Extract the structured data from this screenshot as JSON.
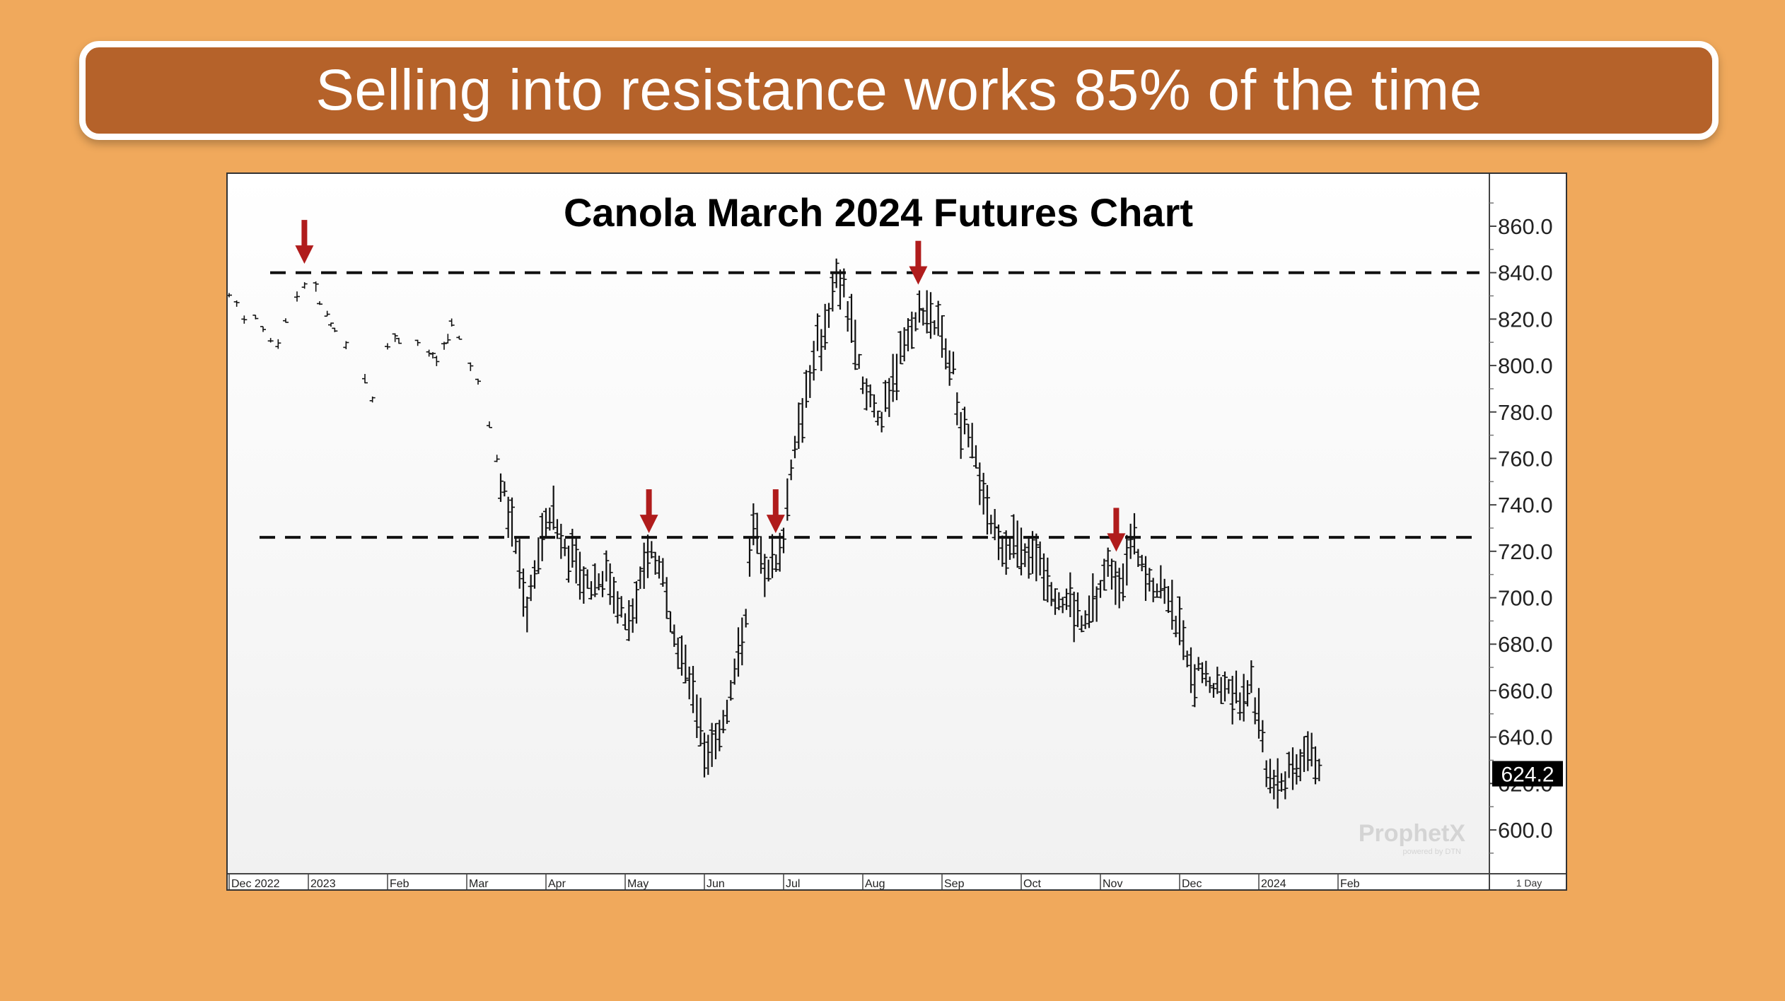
{
  "banner": {
    "title": "Selling into resistance works 85% of the time"
  },
  "chart_data": {
    "type": "bar",
    "subtype": "ohlc",
    "title": "Canola March 2024 Futures Chart",
    "ylim": [
      590,
      870
    ],
    "y_ticks": [
      "860.0",
      "840.0",
      "820.0",
      "800.0",
      "780.0",
      "760.0",
      "740.0",
      "720.0",
      "700.0",
      "680.0",
      "660.0",
      "640.0",
      "620.0",
      "600.0"
    ],
    "y_tick_values": [
      860,
      840,
      820,
      800,
      780,
      760,
      740,
      720,
      700,
      680,
      660,
      640,
      620,
      600
    ],
    "x_ticks": [
      "Dec 2022",
      "2023",
      "Feb",
      "Mar",
      "Apr",
      "May",
      "Jun",
      "Jul",
      "Aug",
      "Sep",
      "Oct",
      "Nov",
      "Dec",
      "2024",
      "Feb"
    ],
    "x_tick_month_index": [
      0,
      1,
      2,
      3,
      4,
      5,
      6,
      7,
      8,
      9,
      10,
      11,
      12,
      13,
      14
    ],
    "interval_label": "1 Day",
    "last_price": "624.2",
    "resistance_levels": [
      840,
      726
    ],
    "arrows": [
      {
        "month_index": 0.95,
        "price": 842
      },
      {
        "month_index": 5.3,
        "price": 726
      },
      {
        "month_index": 6.9,
        "price": 726
      },
      {
        "month_index": 8.7,
        "price": 833
      },
      {
        "month_index": 11.2,
        "price": 718
      }
    ],
    "price_path": [
      {
        "m": 0.0,
        "p": 830
      },
      {
        "m": 0.3,
        "p": 818
      },
      {
        "m": 0.6,
        "p": 810
      },
      {
        "m": 0.9,
        "p": 832
      },
      {
        "m": 1.0,
        "p": 838
      },
      {
        "m": 1.2,
        "p": 822
      },
      {
        "m": 1.4,
        "p": 812
      },
      {
        "m": 1.6,
        "p": 798
      },
      {
        "m": 1.8,
        "p": 788
      },
      {
        "m": 2.0,
        "p": 812
      },
      {
        "m": 2.3,
        "p": 814
      },
      {
        "m": 2.6,
        "p": 800
      },
      {
        "m": 2.85,
        "p": 818
      },
      {
        "m": 3.0,
        "p": 805
      },
      {
        "m": 3.2,
        "p": 792
      },
      {
        "m": 3.35,
        "p": 765
      },
      {
        "m": 3.5,
        "p": 740
      },
      {
        "m": 3.65,
        "p": 720
      },
      {
        "m": 3.75,
        "p": 695
      },
      {
        "m": 3.9,
        "p": 718
      },
      {
        "m": 4.05,
        "p": 738
      },
      {
        "m": 4.2,
        "p": 725
      },
      {
        "m": 4.35,
        "p": 718
      },
      {
        "m": 4.55,
        "p": 705
      },
      {
        "m": 4.75,
        "p": 712
      },
      {
        "m": 4.9,
        "p": 700
      },
      {
        "m": 5.0,
        "p": 688
      },
      {
        "m": 5.15,
        "p": 700
      },
      {
        "m": 5.3,
        "p": 722
      },
      {
        "m": 5.45,
        "p": 712
      },
      {
        "m": 5.6,
        "p": 690
      },
      {
        "m": 5.75,
        "p": 668
      },
      {
        "m": 5.85,
        "p": 660
      },
      {
        "m": 5.95,
        "p": 645
      },
      {
        "m": 6.0,
        "p": 630
      },
      {
        "m": 6.15,
        "p": 640
      },
      {
        "m": 6.3,
        "p": 655
      },
      {
        "m": 6.45,
        "p": 678
      },
      {
        "m": 6.55,
        "p": 700
      },
      {
        "m": 6.6,
        "p": 730
      },
      {
        "m": 6.75,
        "p": 715
      },
      {
        "m": 6.9,
        "p": 712
      },
      {
        "m": 7.0,
        "p": 728
      },
      {
        "m": 7.1,
        "p": 760
      },
      {
        "m": 7.25,
        "p": 785
      },
      {
        "m": 7.4,
        "p": 805
      },
      {
        "m": 7.55,
        "p": 820
      },
      {
        "m": 7.65,
        "p": 838
      },
      {
        "m": 7.75,
        "p": 832
      },
      {
        "m": 7.85,
        "p": 820
      },
      {
        "m": 8.0,
        "p": 790
      },
      {
        "m": 8.15,
        "p": 785
      },
      {
        "m": 8.25,
        "p": 775
      },
      {
        "m": 8.35,
        "p": 790
      },
      {
        "m": 8.5,
        "p": 810
      },
      {
        "m": 8.65,
        "p": 818
      },
      {
        "m": 8.8,
        "p": 825
      },
      {
        "m": 9.0,
        "p": 812
      },
      {
        "m": 9.15,
        "p": 795
      },
      {
        "m": 9.25,
        "p": 775
      },
      {
        "m": 9.4,
        "p": 760
      },
      {
        "m": 9.55,
        "p": 740
      },
      {
        "m": 9.7,
        "p": 726
      },
      {
        "m": 9.9,
        "p": 724
      },
      {
        "m": 10.0,
        "p": 715
      },
      {
        "m": 10.2,
        "p": 722
      },
      {
        "m": 10.35,
        "p": 708
      },
      {
        "m": 10.5,
        "p": 700
      },
      {
        "m": 10.65,
        "p": 695
      },
      {
        "m": 10.8,
        "p": 688
      },
      {
        "m": 10.95,
        "p": 700
      },
      {
        "m": 11.1,
        "p": 712
      },
      {
        "m": 11.25,
        "p": 710
      },
      {
        "m": 11.4,
        "p": 722
      },
      {
        "m": 11.55,
        "p": 715
      },
      {
        "m": 11.7,
        "p": 705
      },
      {
        "m": 11.85,
        "p": 702
      },
      {
        "m": 12.0,
        "p": 688
      },
      {
        "m": 12.15,
        "p": 668
      },
      {
        "m": 12.3,
        "p": 668
      },
      {
        "m": 12.45,
        "p": 660
      },
      {
        "m": 12.6,
        "p": 665
      },
      {
        "m": 12.75,
        "p": 656
      },
      {
        "m": 12.9,
        "p": 665
      },
      {
        "m": 13.0,
        "p": 645
      },
      {
        "m": 13.15,
        "p": 620
      },
      {
        "m": 13.3,
        "p": 622
      },
      {
        "m": 13.5,
        "p": 630
      },
      {
        "m": 13.65,
        "p": 636
      },
      {
        "m": 13.75,
        "p": 630
      },
      {
        "m": 13.8,
        "p": 624.2
      }
    ],
    "sparse_until_month": 3.4,
    "watermark": "ProphetX",
    "watermark_sub": "powered by DTN",
    "colors": {
      "bars": "#111111",
      "arrow": "#B01C1C",
      "resistance": "#111111",
      "label_bg": "#000000",
      "label_fg": "#FFFFFF"
    }
  }
}
